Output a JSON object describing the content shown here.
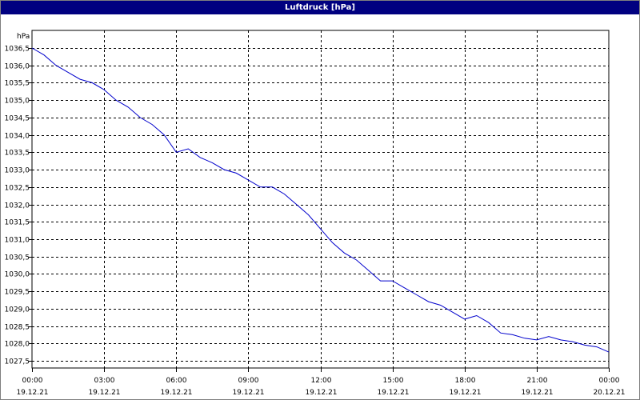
{
  "window": {
    "title": "Luftdruck [hPa]"
  },
  "chart_data": {
    "type": "line",
    "title": "Luftdruck [hPa]",
    "ylabel": "hPa",
    "xlim": [
      "2021-12-19T00:00",
      "2021-12-20T00:00"
    ],
    "ylim": [
      1027.5,
      1036.5
    ],
    "grid": true,
    "y_ticks": [
      "1027,5",
      "1028,0",
      "1028,5",
      "1029,0",
      "1029,5",
      "1030,0",
      "1030,5",
      "1031,0",
      "1031,5",
      "1032,0",
      "1032,5",
      "1033,0",
      "1033,5",
      "1034,0",
      "1034,5",
      "1035,0",
      "1035,5",
      "1036,0",
      "1036,5"
    ],
    "x_ticks": [
      {
        "time": "00:00",
        "date": "19.12.21"
      },
      {
        "time": "03:00",
        "date": "19.12.21"
      },
      {
        "time": "06:00",
        "date": "19.12.21"
      },
      {
        "time": "09:00",
        "date": "19.12.21"
      },
      {
        "time": "12:00",
        "date": "19.12.21"
      },
      {
        "time": "15:00",
        "date": "19.12.21"
      },
      {
        "time": "18:00",
        "date": "19.12.21"
      },
      {
        "time": "21:00",
        "date": "19.12.21"
      },
      {
        "time": "00:00",
        "date": "20.12.21"
      }
    ],
    "series": [
      {
        "color": "#0000cc",
        "x": [
          "2021-12-19T00:00",
          "2021-12-19T00:30",
          "2021-12-19T01:00",
          "2021-12-19T01:30",
          "2021-12-19T02:00",
          "2021-12-19T02:30",
          "2021-12-19T03:00",
          "2021-12-19T03:30",
          "2021-12-19T04:00",
          "2021-12-19T04:30",
          "2021-12-19T05:00",
          "2021-12-19T05:30",
          "2021-12-19T06:00",
          "2021-12-19T06:30",
          "2021-12-19T07:00",
          "2021-12-19T07:30",
          "2021-12-19T08:00",
          "2021-12-19T08:30",
          "2021-12-19T09:00",
          "2021-12-19T09:30",
          "2021-12-19T10:00",
          "2021-12-19T10:30",
          "2021-12-19T11:00",
          "2021-12-19T11:30",
          "2021-12-19T12:00",
          "2021-12-19T12:30",
          "2021-12-19T13:00",
          "2021-12-19T13:30",
          "2021-12-19T14:00",
          "2021-12-19T14:30",
          "2021-12-19T15:00",
          "2021-12-19T15:30",
          "2021-12-19T16:00",
          "2021-12-19T16:30",
          "2021-12-19T17:00",
          "2021-12-19T17:30",
          "2021-12-19T18:00",
          "2021-12-19T18:30",
          "2021-12-19T19:00",
          "2021-12-19T19:30",
          "2021-12-19T20:00",
          "2021-12-19T20:30",
          "2021-12-19T21:00",
          "2021-12-19T21:30",
          "2021-12-19T22:00",
          "2021-12-19T22:30",
          "2021-12-19T23:00",
          "2021-12-19T23:30",
          "2021-12-20T00:00"
        ],
        "y": [
          1036.5,
          1036.3,
          1036.0,
          1035.8,
          1035.6,
          1035.5,
          1035.3,
          1035.0,
          1034.8,
          1034.5,
          1034.3,
          1034.0,
          1033.5,
          1033.6,
          1033.35,
          1033.2,
          1033.0,
          1032.9,
          1032.7,
          1032.5,
          1032.5,
          1032.3,
          1032.0,
          1031.7,
          1031.3,
          1030.9,
          1030.6,
          1030.4,
          1030.1,
          1029.8,
          1029.8,
          1029.6,
          1029.4,
          1029.2,
          1029.1,
          1028.9,
          1028.7,
          1028.8,
          1028.6,
          1028.3,
          1028.25,
          1028.15,
          1028.1,
          1028.2,
          1028.1,
          1028.05,
          1027.95,
          1027.9,
          1027.75
        ]
      }
    ]
  }
}
